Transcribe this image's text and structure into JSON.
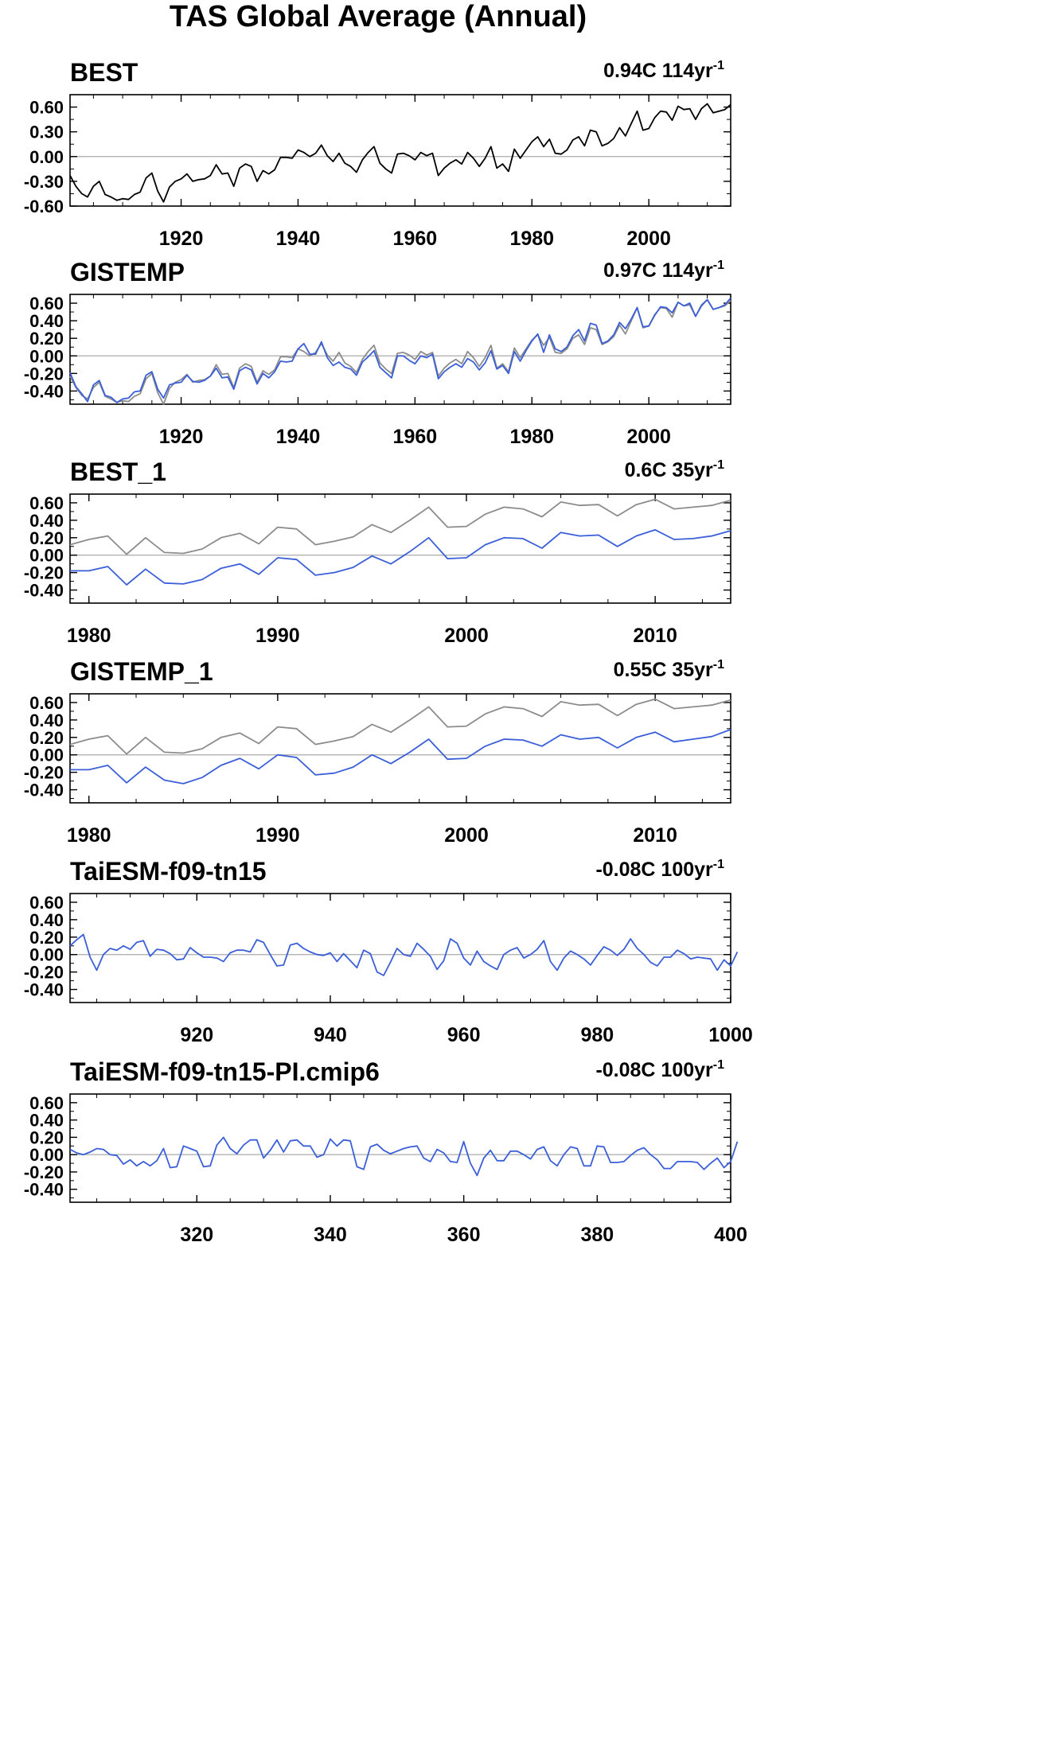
{
  "title": "TAS Global Average (Annual)",
  "colors": {
    "obs": "#000000",
    "gray": "#8c8c8c",
    "model": "#3b5fd9",
    "zero": "#aaaaaa"
  },
  "chart_data": [
    {
      "type": "line",
      "title": "BEST",
      "annotation": "0.94C 114yr",
      "annotation_exp": "-1",
      "xlim": [
        1901,
        2014
      ],
      "ylim": [
        -0.6,
        0.75
      ],
      "yticks": [
        -0.6,
        -0.3,
        0.0,
        0.3,
        0.6
      ],
      "ytick_labels": [
        "-0.60",
        "-0.30",
        "0.00",
        "0.30",
        "0.60"
      ],
      "xticks": [
        1920,
        1940,
        1960,
        1980,
        2000
      ],
      "xtick_labels": [
        "1920",
        "1940",
        "1960",
        "1980",
        "2000"
      ],
      "series": [
        {
          "color": "obs",
          "x_start": 1901,
          "values": [
            -0.23,
            -0.36,
            -0.45,
            -0.49,
            -0.36,
            -0.3,
            -0.46,
            -0.49,
            -0.53,
            -0.51,
            -0.52,
            -0.46,
            -0.43,
            -0.26,
            -0.2,
            -0.42,
            -0.55,
            -0.37,
            -0.3,
            -0.27,
            -0.21,
            -0.3,
            -0.28,
            -0.27,
            -0.23,
            -0.1,
            -0.21,
            -0.2,
            -0.36,
            -0.14,
            -0.09,
            -0.12,
            -0.3,
            -0.17,
            -0.21,
            -0.16,
            -0.01,
            -0.01,
            -0.02,
            0.08,
            0.05,
            0.0,
            0.04,
            0.14,
            0.01,
            -0.06,
            0.04,
            -0.08,
            -0.12,
            -0.19,
            -0.04,
            0.05,
            0.12,
            -0.08,
            -0.15,
            -0.2,
            0.03,
            0.04,
            0.01,
            -0.04,
            0.05,
            0.01,
            0.04,
            -0.23,
            -0.14,
            -0.08,
            -0.04,
            -0.09,
            0.05,
            -0.02,
            -0.12,
            -0.02,
            0.12,
            -0.14,
            -0.09,
            -0.18,
            0.09,
            -0.02,
            0.08,
            0.18,
            0.24,
            0.12,
            0.21,
            0.04,
            0.03,
            0.08,
            0.2,
            0.24,
            0.13,
            0.32,
            0.3,
            0.13,
            0.16,
            0.22,
            0.35,
            0.25,
            0.4,
            0.55,
            0.32,
            0.34,
            0.47,
            0.55,
            0.54,
            0.44,
            0.61,
            0.57,
            0.58,
            0.45,
            0.58,
            0.64,
            0.53,
            0.55,
            0.57,
            0.63
          ]
        }
      ]
    },
    {
      "type": "line",
      "title": "GISTEMP",
      "annotation": "0.97C 114yr",
      "annotation_exp": "-1",
      "xlim": [
        1901,
        2014
      ],
      "ylim": [
        -0.55,
        0.7
      ],
      "yticks": [
        -0.4,
        -0.2,
        0.0,
        0.2,
        0.4,
        0.6
      ],
      "ytick_labels": [
        "-0.40",
        "-0.20",
        "0.00",
        "0.20",
        "0.40",
        "0.60"
      ],
      "xticks": [
        1920,
        1940,
        1960,
        1980,
        2000
      ],
      "xtick_labels": [
        "1920",
        "1940",
        "1960",
        "1980",
        "2000"
      ],
      "series": [
        {
          "color": "gray",
          "x_start": 1901,
          "values": [
            -0.23,
            -0.36,
            -0.45,
            -0.49,
            -0.36,
            -0.3,
            -0.46,
            -0.49,
            -0.53,
            -0.51,
            -0.52,
            -0.46,
            -0.43,
            -0.26,
            -0.2,
            -0.42,
            -0.55,
            -0.37,
            -0.3,
            -0.27,
            -0.21,
            -0.3,
            -0.28,
            -0.27,
            -0.23,
            -0.1,
            -0.21,
            -0.2,
            -0.36,
            -0.14,
            -0.09,
            -0.12,
            -0.3,
            -0.17,
            -0.21,
            -0.16,
            -0.01,
            -0.01,
            -0.02,
            0.08,
            0.05,
            0.0,
            0.04,
            0.14,
            0.01,
            -0.06,
            0.04,
            -0.08,
            -0.12,
            -0.19,
            -0.04,
            0.05,
            0.12,
            -0.08,
            -0.15,
            -0.2,
            0.03,
            0.04,
            0.01,
            -0.04,
            0.05,
            0.01,
            0.04,
            -0.23,
            -0.14,
            -0.08,
            -0.04,
            -0.09,
            0.05,
            -0.02,
            -0.12,
            -0.02,
            0.12,
            -0.14,
            -0.09,
            -0.18,
            0.09,
            -0.02,
            0.08,
            0.18,
            0.24,
            0.12,
            0.21,
            0.04,
            0.03,
            0.08,
            0.2,
            0.24,
            0.13,
            0.32,
            0.3,
            0.13,
            0.16,
            0.22,
            0.35,
            0.25,
            0.4,
            0.55,
            0.32,
            0.34,
            0.47,
            0.55,
            0.54,
            0.44,
            0.61,
            0.57,
            0.58,
            0.45,
            0.58,
            0.64,
            0.53,
            0.55,
            0.57,
            0.63
          ]
        },
        {
          "color": "model",
          "x_start": 1901,
          "values": [
            -0.19,
            -0.35,
            -0.43,
            -0.52,
            -0.33,
            -0.28,
            -0.45,
            -0.47,
            -0.53,
            -0.49,
            -0.48,
            -0.41,
            -0.4,
            -0.22,
            -0.18,
            -0.38,
            -0.48,
            -0.33,
            -0.31,
            -0.3,
            -0.22,
            -0.29,
            -0.3,
            -0.28,
            -0.23,
            -0.14,
            -0.25,
            -0.24,
            -0.38,
            -0.17,
            -0.13,
            -0.16,
            -0.32,
            -0.2,
            -0.25,
            -0.18,
            -0.06,
            -0.07,
            -0.06,
            0.08,
            0.14,
            0.02,
            0.02,
            0.16,
            -0.02,
            -0.11,
            -0.07,
            -0.13,
            -0.15,
            -0.22,
            -0.07,
            -0.01,
            0.06,
            -0.13,
            -0.19,
            -0.25,
            0.0,
            0.0,
            -0.05,
            -0.09,
            0.0,
            -0.02,
            0.02,
            -0.26,
            -0.18,
            -0.13,
            -0.09,
            -0.13,
            -0.03,
            -0.07,
            -0.16,
            -0.08,
            0.06,
            -0.15,
            -0.11,
            -0.2,
            0.05,
            -0.06,
            0.06,
            0.17,
            0.25,
            0.04,
            0.24,
            0.08,
            0.05,
            0.1,
            0.23,
            0.3,
            0.17,
            0.37,
            0.35,
            0.14,
            0.17,
            0.24,
            0.38,
            0.31,
            0.42,
            0.55,
            0.33,
            0.34,
            0.46,
            0.56,
            0.55,
            0.49,
            0.61,
            0.57,
            0.6,
            0.45,
            0.57,
            0.64,
            0.53,
            0.55,
            0.58,
            0.66
          ]
        }
      ]
    },
    {
      "type": "line",
      "title": "BEST_1",
      "annotation": "0.6C 35yr",
      "annotation_exp": "-1",
      "xlim": [
        1979,
        2014
      ],
      "ylim": [
        -0.55,
        0.7
      ],
      "yticks": [
        -0.4,
        -0.2,
        0.0,
        0.2,
        0.4,
        0.6
      ],
      "ytick_labels": [
        "-0.40",
        "-0.20",
        "0.00",
        "0.20",
        "0.40",
        "0.60"
      ],
      "xticks": [
        1980,
        1990,
        2000,
        2010
      ],
      "xtick_labels": [
        "1980",
        "1990",
        "2000",
        "2010"
      ],
      "series": [
        {
          "color": "gray",
          "x_start": 1979,
          "values": [
            0.12,
            0.18,
            0.22,
            0.01,
            0.2,
            0.03,
            0.02,
            0.07,
            0.2,
            0.25,
            0.13,
            0.32,
            0.3,
            0.12,
            0.16,
            0.21,
            0.35,
            0.26,
            0.4,
            0.55,
            0.32,
            0.33,
            0.47,
            0.55,
            0.53,
            0.44,
            0.61,
            0.57,
            0.58,
            0.45,
            0.58,
            0.64,
            0.53,
            0.55,
            0.57,
            0.63
          ]
        },
        {
          "color": "model",
          "x_start": 1979,
          "values": [
            -0.18,
            -0.18,
            -0.13,
            -0.34,
            -0.16,
            -0.32,
            -0.33,
            -0.28,
            -0.15,
            -0.1,
            -0.22,
            -0.03,
            -0.05,
            -0.23,
            -0.2,
            -0.14,
            -0.01,
            -0.1,
            0.04,
            0.2,
            -0.04,
            -0.03,
            0.12,
            0.2,
            0.19,
            0.08,
            0.26,
            0.22,
            0.23,
            0.1,
            0.22,
            0.29,
            0.18,
            0.19,
            0.22,
            0.28
          ]
        }
      ]
    },
    {
      "type": "line",
      "title": "GISTEMP_1",
      "annotation": "0.55C 35yr",
      "annotation_exp": "-1",
      "xlim": [
        1979,
        2014
      ],
      "ylim": [
        -0.55,
        0.7
      ],
      "yticks": [
        -0.4,
        -0.2,
        0.0,
        0.2,
        0.4,
        0.6
      ],
      "ytick_labels": [
        "-0.40",
        "-0.20",
        "0.00",
        "0.20",
        "0.40",
        "0.60"
      ],
      "xticks": [
        1980,
        1990,
        2000,
        2010
      ],
      "xtick_labels": [
        "1980",
        "1990",
        "2000",
        "2010"
      ],
      "series": [
        {
          "color": "gray",
          "x_start": 1979,
          "values": [
            0.12,
            0.18,
            0.22,
            0.01,
            0.2,
            0.03,
            0.02,
            0.07,
            0.2,
            0.25,
            0.13,
            0.32,
            0.3,
            0.12,
            0.16,
            0.21,
            0.35,
            0.26,
            0.4,
            0.55,
            0.32,
            0.33,
            0.47,
            0.55,
            0.53,
            0.44,
            0.61,
            0.57,
            0.58,
            0.45,
            0.58,
            0.64,
            0.53,
            0.55,
            0.57,
            0.63
          ]
        },
        {
          "color": "model",
          "x_start": 1979,
          "values": [
            -0.17,
            -0.17,
            -0.12,
            -0.32,
            -0.14,
            -0.29,
            -0.33,
            -0.26,
            -0.12,
            -0.04,
            -0.16,
            0.0,
            -0.03,
            -0.23,
            -0.21,
            -0.14,
            0.0,
            -0.1,
            0.03,
            0.18,
            -0.05,
            -0.04,
            0.1,
            0.18,
            0.17,
            0.1,
            0.23,
            0.18,
            0.2,
            0.08,
            0.2,
            0.26,
            0.15,
            0.18,
            0.21,
            0.29
          ]
        }
      ]
    },
    {
      "type": "line",
      "title": "TaiESM-f09-tn15",
      "annotation": "-0.08C 100yr",
      "annotation_exp": "-1",
      "xlim": [
        901,
        1000
      ],
      "ylim": [
        -0.55,
        0.7
      ],
      "yticks": [
        -0.4,
        -0.2,
        0.0,
        0.2,
        0.4,
        0.6
      ],
      "ytick_labels": [
        "-0.40",
        "-0.20",
        "0.00",
        "0.20",
        "0.40",
        "0.60"
      ],
      "xticks": [
        920,
        940,
        960,
        980,
        1000
      ],
      "xtick_labels": [
        "920",
        "940",
        "960",
        "980",
        "1000"
      ],
      "series": [
        {
          "color": "model",
          "x_start": 901,
          "values": [
            0.1,
            0.17,
            0.23,
            -0.03,
            -0.18,
            0.0,
            0.07,
            0.05,
            0.1,
            0.06,
            0.14,
            0.16,
            -0.02,
            0.06,
            0.05,
            0.01,
            -0.06,
            -0.05,
            0.08,
            0.02,
            -0.03,
            -0.03,
            -0.04,
            -0.08,
            0.02,
            0.05,
            0.05,
            0.03,
            0.17,
            0.14,
            0.0,
            -0.13,
            -0.12,
            0.11,
            0.13,
            0.07,
            0.03,
            0.0,
            -0.01,
            0.02,
            -0.08,
            0.01,
            -0.07,
            -0.15,
            0.05,
            0.01,
            -0.2,
            -0.24,
            -0.09,
            0.07,
            0.0,
            -0.02,
            0.13,
            0.06,
            -0.02,
            -0.17,
            -0.07,
            0.18,
            0.13,
            -0.04,
            -0.12,
            0.04,
            -0.08,
            -0.13,
            -0.17,
            0.0,
            0.05,
            0.08,
            -0.04,
            0.0,
            0.06,
            0.16,
            -0.08,
            -0.18,
            -0.04,
            0.04,
            0.0,
            -0.05,
            -0.12,
            -0.01,
            0.09,
            0.05,
            -0.01,
            0.06,
            0.18,
            0.07,
            0.0,
            -0.09,
            -0.13,
            -0.03,
            -0.03,
            0.05,
            0.01,
            -0.05,
            -0.03,
            -0.04,
            -0.05,
            -0.18,
            -0.06,
            -0.13,
            0.03
          ]
        }
      ]
    },
    {
      "type": "line",
      "title": "TaiESM-f09-tn15-PI.cmip6",
      "annotation": "-0.08C 100yr",
      "annotation_exp": "-1",
      "xlim": [
        301,
        400
      ],
      "ylim": [
        -0.55,
        0.7
      ],
      "yticks": [
        -0.4,
        -0.2,
        0.0,
        0.2,
        0.4,
        0.6
      ],
      "ytick_labels": [
        "-0.40",
        "-0.20",
        "0.00",
        "0.20",
        "0.40",
        "0.60"
      ],
      "xticks": [
        320,
        340,
        360,
        380,
        400
      ],
      "xtick_labels": [
        "320",
        "340",
        "360",
        "380",
        "400"
      ],
      "series": [
        {
          "color": "model",
          "x_start": 301,
          "values": [
            0.06,
            0.02,
            0.0,
            0.03,
            0.07,
            0.06,
            0.0,
            -0.01,
            -0.11,
            -0.06,
            -0.13,
            -0.08,
            -0.13,
            -0.07,
            0.07,
            -0.15,
            -0.14,
            0.1,
            0.07,
            0.04,
            -0.14,
            -0.13,
            0.11,
            0.2,
            0.07,
            0.01,
            0.11,
            0.17,
            0.17,
            -0.04,
            0.05,
            0.17,
            0.03,
            0.16,
            0.17,
            0.1,
            0.1,
            -0.03,
            0.0,
            0.18,
            0.1,
            0.17,
            0.16,
            -0.14,
            -0.17,
            0.09,
            0.12,
            0.05,
            0.01,
            0.04,
            0.07,
            0.09,
            0.1,
            -0.04,
            -0.08,
            0.06,
            0.02,
            -0.08,
            -0.09,
            0.15,
            -0.1,
            -0.24,
            -0.04,
            0.05,
            -0.07,
            -0.07,
            0.04,
            0.04,
            0.0,
            -0.05,
            0.06,
            0.09,
            -0.07,
            -0.13,
            0.0,
            0.09,
            0.07,
            -0.13,
            -0.13,
            0.1,
            0.09,
            -0.09,
            -0.09,
            -0.08,
            -0.01,
            0.05,
            0.08,
            0.0,
            -0.06,
            -0.16,
            -0.16,
            -0.08,
            -0.08,
            -0.08,
            -0.09,
            -0.17,
            -0.1,
            -0.04,
            -0.15,
            -0.08,
            0.15
          ]
        }
      ]
    }
  ]
}
